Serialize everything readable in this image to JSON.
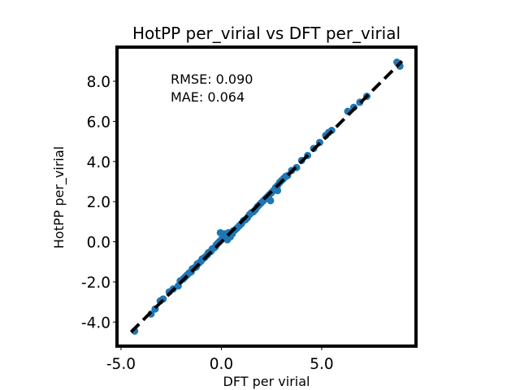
{
  "chart_data": {
    "type": "scatter",
    "title": "HotPP per_virial vs DFT per_virial",
    "xlabel": "DFT  per  virial",
    "ylabel": "HotPP per_virial",
    "xlim": [
      -5.2,
      9.7
    ],
    "ylim": [
      -5.2,
      9.7
    ],
    "x_ticks": [
      -5.0,
      0.0,
      5.0
    ],
    "x_tick_labels": [
      "-5.0",
      "0.0",
      "5.0"
    ],
    "y_ticks": [
      -4.0,
      -2.0,
      0.0,
      2.0,
      4.0,
      6.0,
      8.0
    ],
    "y_tick_labels": [
      "-4.0",
      "-2.0",
      "0.0",
      "2.0",
      "4.0",
      "6.0",
      "8.0"
    ],
    "grid": false,
    "annotations": [
      "RMSE: 0.090",
      "MAE: 0.064"
    ],
    "reference_line": {
      "style": "dashed",
      "color": "#000000",
      "x": [
        -4.5,
        9.0
      ],
      "y": [
        -4.5,
        9.0
      ]
    },
    "marker_color": "#1f77b4",
    "series": [
      {
        "points": [
          [
            -4.32,
            -4.45
          ],
          [
            -3.5,
            -3.6
          ],
          [
            -3.3,
            -3.35
          ],
          [
            -3.05,
            -2.95
          ],
          [
            -2.9,
            -2.85
          ],
          [
            -2.6,
            -2.5
          ],
          [
            -2.4,
            -2.35
          ],
          [
            -2.15,
            -2.2
          ],
          [
            -2.05,
            -1.95
          ],
          [
            -1.9,
            -1.85
          ],
          [
            -1.8,
            -1.75
          ],
          [
            -1.7,
            -1.65
          ],
          [
            -1.6,
            -1.55
          ],
          [
            -1.5,
            -1.5
          ],
          [
            -1.45,
            -1.35
          ],
          [
            -1.35,
            -1.3
          ],
          [
            -1.25,
            -1.25
          ],
          [
            -1.2,
            -1.1
          ],
          [
            -1.1,
            -1.05
          ],
          [
            -1.0,
            -0.95
          ],
          [
            -0.95,
            -0.85
          ],
          [
            -0.85,
            -0.8
          ],
          [
            -0.8,
            -0.75
          ],
          [
            -0.7,
            -0.65
          ],
          [
            -0.65,
            -0.55
          ],
          [
            -0.55,
            -0.5
          ],
          [
            -0.5,
            -0.45
          ],
          [
            -0.45,
            -0.35
          ],
          [
            -0.35,
            -0.3
          ],
          [
            -0.3,
            -0.25
          ],
          [
            -0.25,
            -0.15
          ],
          [
            -0.2,
            -0.1
          ],
          [
            -0.15,
            -0.05
          ],
          [
            -0.1,
            0.0
          ],
          [
            -0.05,
            0.05
          ],
          [
            0.0,
            0.1
          ],
          [
            0.05,
            0.15
          ],
          [
            0.1,
            0.2
          ],
          [
            0.15,
            0.25
          ],
          [
            0.2,
            0.3
          ],
          [
            0.25,
            0.35
          ],
          [
            0.3,
            0.4
          ],
          [
            0.35,
            0.45
          ],
          [
            0.4,
            0.45
          ],
          [
            -0.05,
            0.45
          ],
          [
            0.15,
            0.4
          ],
          [
            0.3,
            0.1
          ],
          [
            0.45,
            0.25
          ],
          [
            0.55,
            0.4
          ],
          [
            0.6,
            0.55
          ],
          [
            0.7,
            0.6
          ],
          [
            0.8,
            0.7
          ],
          [
            0.9,
            0.8
          ],
          [
            1.0,
            0.9
          ],
          [
            1.1,
            1.05
          ],
          [
            1.2,
            1.1
          ],
          [
            1.3,
            1.2
          ],
          [
            1.4,
            1.35
          ],
          [
            1.5,
            1.45
          ],
          [
            1.6,
            1.5
          ],
          [
            1.7,
            1.6
          ],
          [
            1.8,
            1.75
          ],
          [
            1.9,
            1.85
          ],
          [
            2.0,
            1.95
          ],
          [
            2.1,
            2.05
          ],
          [
            2.2,
            2.15
          ],
          [
            2.3,
            2.25
          ],
          [
            2.4,
            2.35
          ],
          [
            2.5,
            2.45
          ],
          [
            2.6,
            2.55
          ],
          [
            2.7,
            2.7
          ],
          [
            2.8,
            2.8
          ],
          [
            2.9,
            2.95
          ],
          [
            3.0,
            3.05
          ],
          [
            3.1,
            3.15
          ],
          [
            3.2,
            3.25
          ],
          [
            2.45,
            2.05
          ],
          [
            2.8,
            2.55
          ],
          [
            3.3,
            3.3
          ],
          [
            3.5,
            3.55
          ],
          [
            3.75,
            3.7
          ],
          [
            4.0,
            4.05
          ],
          [
            4.3,
            4.3
          ],
          [
            4.6,
            4.65
          ],
          [
            4.9,
            4.95
          ],
          [
            5.2,
            5.3
          ],
          [
            5.35,
            5.45
          ],
          [
            5.5,
            5.55
          ],
          [
            6.3,
            6.5
          ],
          [
            6.6,
            6.7
          ],
          [
            6.9,
            6.95
          ],
          [
            7.25,
            7.25
          ],
          [
            8.75,
            8.95
          ],
          [
            8.9,
            8.75
          ]
        ]
      }
    ]
  }
}
